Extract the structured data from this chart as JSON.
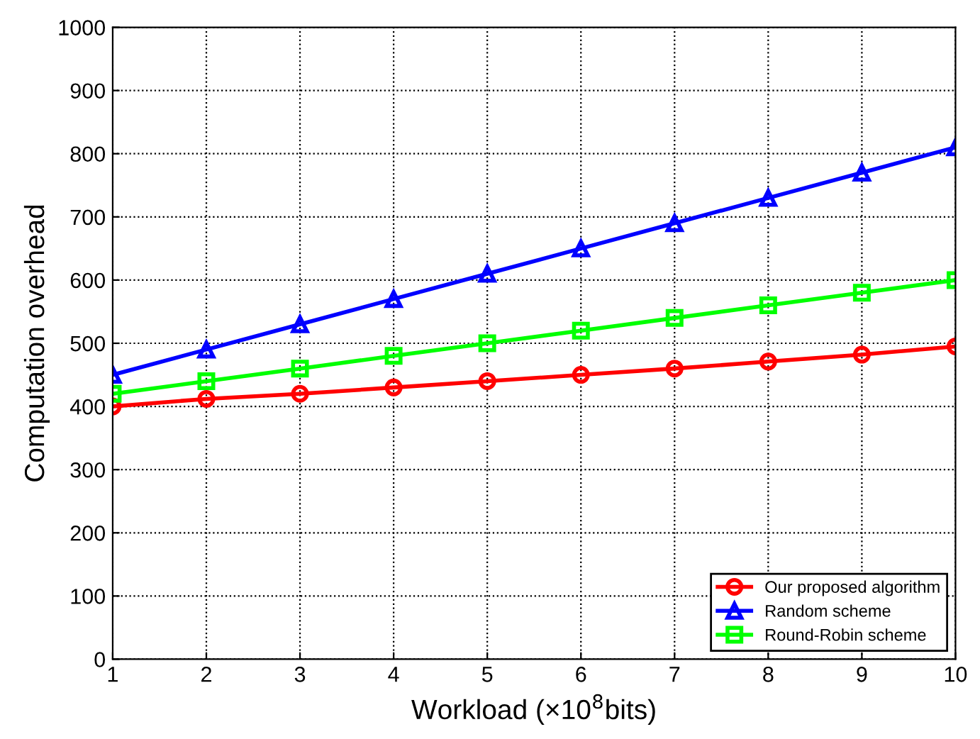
{
  "chart_data": {
    "type": "line",
    "xlabel": "Workload (×10$^{8}$bits)",
    "ylabel": "Computation overhead",
    "x": [
      1,
      2,
      3,
      4,
      5,
      6,
      7,
      8,
      9,
      10
    ],
    "series": [
      {
        "name": "Our proposed algorithm",
        "color": "#ff0000",
        "marker": "circle",
        "values": [
          400,
          412,
          420,
          430,
          440,
          450,
          460,
          471,
          482,
          495
        ]
      },
      {
        "name": "Random scheme",
        "color": "#0000ff",
        "marker": "triangle",
        "values": [
          450,
          490,
          530,
          570,
          610,
          650,
          690,
          730,
          770,
          810
        ]
      },
      {
        "name": "Round-Robin scheme",
        "color": "#00ff00",
        "marker": "square",
        "values": [
          420,
          440,
          460,
          480,
          500,
          520,
          540,
          560,
          580,
          600
        ]
      }
    ],
    "xlim": [
      1,
      10
    ],
    "xticks": [
      1,
      2,
      3,
      4,
      5,
      6,
      7,
      8,
      9,
      10
    ],
    "ylim": [
      0,
      1000
    ],
    "yticks": [
      0,
      100,
      200,
      300,
      400,
      500,
      600,
      700,
      800,
      900,
      1000
    ],
    "grid": true,
    "legend": "bottom right",
    "line_style": "solid"
  }
}
